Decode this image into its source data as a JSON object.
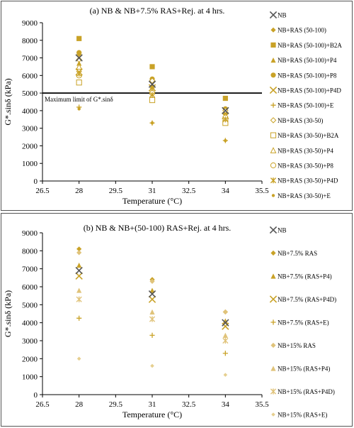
{
  "colors": {
    "gold": "#c9a227",
    "light_gold": "#e0c37a",
    "pale_gold": "#e6cf8f",
    "nb": "#555555",
    "line": "#000000"
  },
  "chart_data": [
    {
      "type": "scatter",
      "title": "(a) NB & NB+7.5% RAS+Rej. at 4 hrs.",
      "xlabel": "Temperature (°C)",
      "ylabel": "G*.sinδ (kPa)",
      "xlim": [
        26.5,
        35.5
      ],
      "ylim": [
        0,
        9000
      ],
      "x_ticks": [
        "26.5",
        "28",
        "29.5",
        "31",
        "32.5",
        "34",
        "35.5"
      ],
      "y_ticks": [
        "0",
        "1000",
        "2000",
        "3000",
        "4000",
        "5000",
        "6000",
        "7000",
        "8000",
        "9000"
      ],
      "grid": false,
      "legend_position": "right",
      "reference_line": {
        "y": 5000,
        "label": "Maximum limit of G*.sinδ"
      },
      "x": [
        28,
        31,
        34
      ],
      "series": [
        {
          "name": "NB",
          "marker": "x",
          "color": "#555555",
          "values": [
            7000,
            5500,
            4000
          ]
        },
        {
          "name": "NB+RAS (50-100)",
          "marker": "diamond",
          "color": "#c9a227",
          "values": [
            7200,
            5800,
            4100
          ]
        },
        {
          "name": "NB+RAS (50-100)+B2A",
          "marker": "square",
          "color": "#c9a227",
          "values": [
            8100,
            6500,
            4700
          ]
        },
        {
          "name": "NB+RAS (50-100)+P4",
          "marker": "triangle",
          "color": "#c9a227",
          "values": [
            6700,
            5400,
            3900
          ]
        },
        {
          "name": "NB+RAS (50-100)+P8",
          "marker": "circle",
          "color": "#c9a227",
          "values": [
            7300,
            5800,
            4100
          ]
        },
        {
          "name": "NB+RAS (50-100)+P4D",
          "marker": "x",
          "color": "#c9a227",
          "values": [
            6200,
            5300,
            3700
          ]
        },
        {
          "name": "NB+RAS (50-100)+E",
          "marker": "plus",
          "color": "#c9a227",
          "values": [
            4200,
            3300,
            2300
          ]
        },
        {
          "name": "NB+RAS (30-50)",
          "marker": "diamond-open",
          "color": "#c9a227",
          "values": [
            6900,
            5700,
            4000
          ]
        },
        {
          "name": "NB+RAS (30-50)+B2A",
          "marker": "square-open",
          "color": "#c9a227",
          "values": [
            5600,
            4600,
            3300
          ]
        },
        {
          "name": "NB+RAS (30-50)+P4",
          "marker": "triangle-open",
          "color": "#c9a227",
          "values": [
            6500,
            5100,
            3700
          ]
        },
        {
          "name": "NB+RAS (30-50)+P8",
          "marker": "circle-open",
          "color": "#c9a227",
          "values": [
            6000,
            5000,
            3600
          ]
        },
        {
          "name": "NB+RAS (30-50)+P4D",
          "marker": "star",
          "color": "#c9a227",
          "values": [
            6100,
            4900,
            3500
          ]
        },
        {
          "name": "NB+RAS (30-50)+E",
          "marker": "asterisk",
          "color": "#c9a227",
          "values": [
            4100,
            3300,
            2300
          ]
        }
      ]
    },
    {
      "type": "scatter",
      "title": "(b) NB & NB+(50-100) RAS+Rej. at 4 hrs.",
      "xlabel": "Temperature (°C)",
      "ylabel": "G*.sinδ (kPa)",
      "xlim": [
        26.5,
        35.5
      ],
      "ylim": [
        0,
        9000
      ],
      "x_ticks": [
        "26.5",
        "28",
        "29.5",
        "31",
        "32.5",
        "34",
        "35.5"
      ],
      "y_ticks": [
        "0",
        "1000",
        "2000",
        "3000",
        "4000",
        "5000",
        "6000",
        "7000",
        "8000",
        "9000"
      ],
      "grid": false,
      "legend_position": "right",
      "x": [
        28,
        31,
        34
      ],
      "series": [
        {
          "name": "NB",
          "marker": "x",
          "color": "#555555",
          "values": [
            6900,
            5600,
            4000
          ]
        },
        {
          "name": "NB+7.5% RAS",
          "marker": "diamond",
          "color": "#c9a227",
          "values": [
            8100,
            6400,
            4600
          ]
        },
        {
          "name": "NB+7.5% (RAS+P4)",
          "marker": "triangle",
          "color": "#c9a227",
          "values": [
            7200,
            5800,
            4100
          ]
        },
        {
          "name": "NB+7.5% (RAS+P4D)",
          "marker": "x",
          "color": "#c9a227",
          "values": [
            6600,
            5300,
            3800
          ]
        },
        {
          "name": "NB+7.5% (RAS+E)",
          "marker": "plus",
          "color": "#c9a227",
          "values": [
            4250,
            3300,
            2300
          ]
        },
        {
          "name": "NB+15% RAS",
          "marker": "diamond",
          "color": "#e0c37a",
          "values": [
            7900,
            6300,
            4600
          ]
        },
        {
          "name": "NB+15% (RAS+P4)",
          "marker": "triangle",
          "color": "#e0c37a",
          "values": [
            5800,
            4600,
            3300
          ]
        },
        {
          "name": "NB+15% (RAS+P4D)",
          "marker": "star",
          "color": "#e0c37a",
          "values": [
            5300,
            4200,
            3000
          ]
        },
        {
          "name": "NB+15% (RAS+E)",
          "marker": "diamond-small",
          "color": "#e6cf8f",
          "values": [
            2000,
            1600,
            1100
          ]
        }
      ]
    }
  ]
}
